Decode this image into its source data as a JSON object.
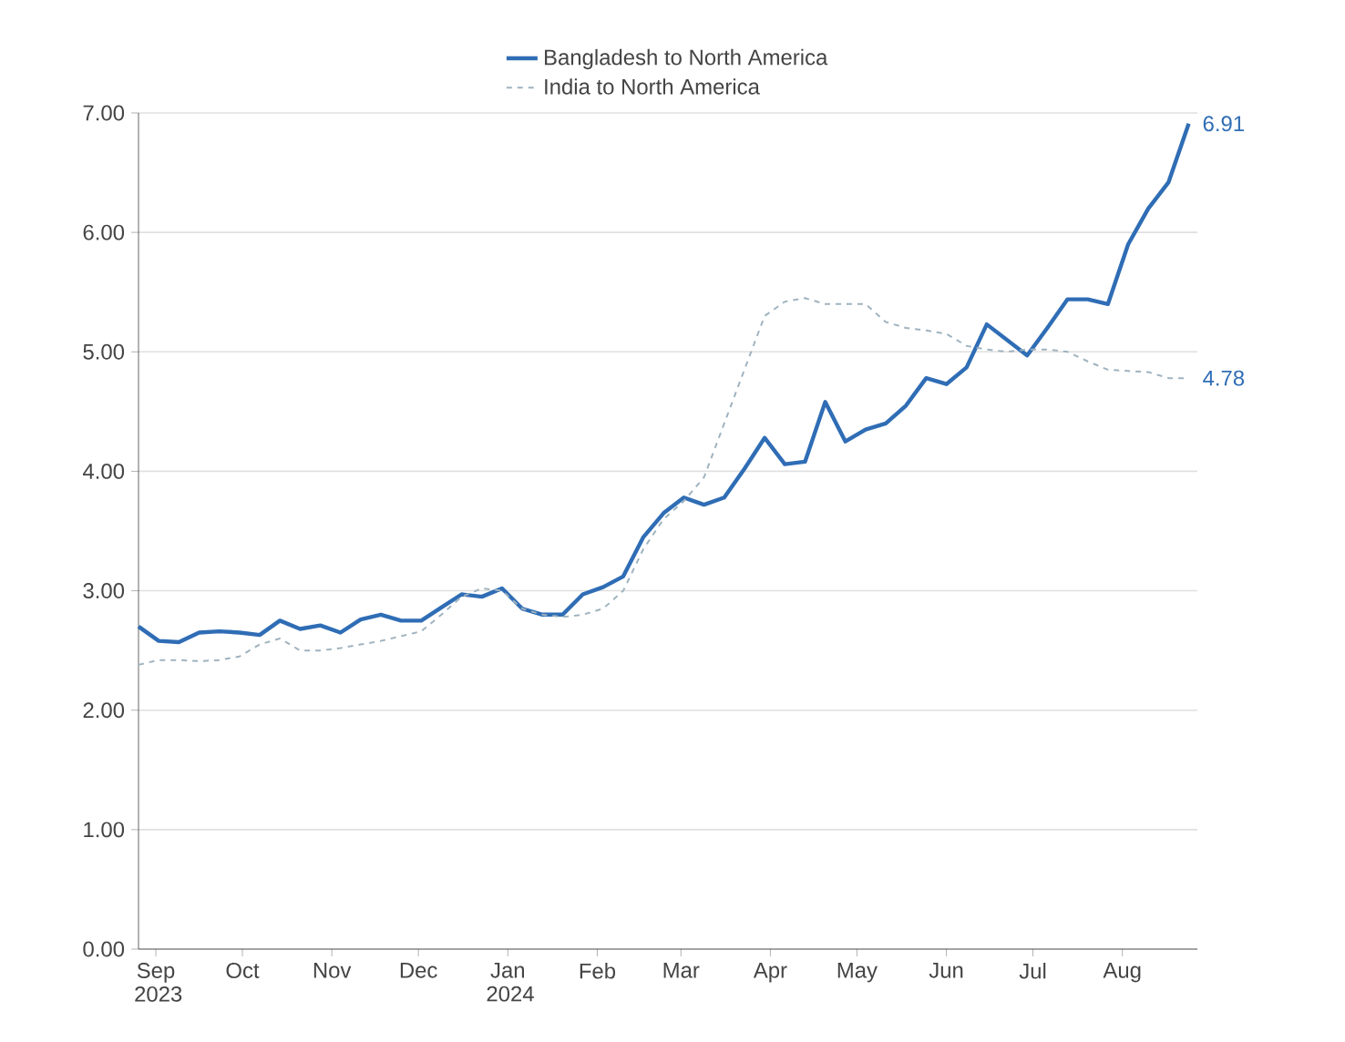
{
  "chart_data": {
    "type": "line",
    "x": [
      "2023-08-26",
      "2023-09-02",
      "2023-09-09",
      "2023-09-16",
      "2023-09-23",
      "2023-09-30",
      "2023-10-07",
      "2023-10-14",
      "2023-10-21",
      "2023-10-28",
      "2023-11-04",
      "2023-11-11",
      "2023-11-18",
      "2023-11-25",
      "2023-12-02",
      "2023-12-09",
      "2023-12-16",
      "2023-12-23",
      "2023-12-30",
      "2024-01-06",
      "2024-01-13",
      "2024-01-20",
      "2024-01-27",
      "2024-02-03",
      "2024-02-10",
      "2024-02-17",
      "2024-02-24",
      "2024-03-02",
      "2024-03-09",
      "2024-03-16",
      "2024-03-23",
      "2024-03-30",
      "2024-04-06",
      "2024-04-13",
      "2024-04-20",
      "2024-04-27",
      "2024-05-04",
      "2024-05-11",
      "2024-05-18",
      "2024-05-25",
      "2024-06-01",
      "2024-06-08",
      "2024-06-15",
      "2024-06-22",
      "2024-06-29",
      "2024-07-06",
      "2024-07-13",
      "2024-07-20",
      "2024-07-27",
      "2024-08-03",
      "2024-08-10",
      "2024-08-17",
      "2024-08-24"
    ],
    "series": [
      {
        "name": "Bangladesh to North America",
        "color": "#2f6db5",
        "line_style": "solid",
        "values": [
          2.7,
          2.58,
          2.57,
          2.65,
          2.66,
          2.65,
          2.63,
          2.75,
          2.68,
          2.71,
          2.65,
          2.76,
          2.8,
          2.75,
          2.75,
          2.86,
          2.97,
          2.95,
          3.02,
          2.85,
          2.8,
          2.8,
          2.97,
          3.03,
          3.12,
          3.45,
          3.65,
          3.78,
          3.72,
          3.78,
          4.02,
          4.28,
          4.06,
          4.08,
          4.58,
          4.25,
          4.35,
          4.4,
          4.55,
          4.78,
          4.73,
          4.87,
          5.23,
          5.1,
          4.97,
          5.2,
          5.44,
          5.44,
          5.4,
          5.9,
          6.2,
          6.42,
          6.91
        ]
      },
      {
        "name": "India to North America",
        "color": "#9fb3bf",
        "line_style": "dashed",
        "values": [
          2.38,
          2.42,
          2.42,
          2.41,
          2.42,
          2.45,
          2.55,
          2.6,
          2.5,
          2.5,
          2.52,
          2.55,
          2.58,
          2.62,
          2.66,
          2.8,
          2.95,
          3.02,
          3.0,
          2.85,
          2.8,
          2.78,
          2.8,
          2.85,
          3.0,
          3.35,
          3.6,
          3.75,
          3.95,
          4.4,
          4.85,
          5.3,
          5.42,
          5.45,
          5.4,
          5.4,
          5.4,
          5.25,
          5.2,
          5.18,
          5.15,
          5.05,
          5.02,
          5.0,
          5.02,
          5.02,
          5.0,
          4.92,
          4.85,
          4.84,
          4.83,
          4.78,
          4.78
        ]
      }
    ],
    "xlim": [
      "2023-08-26",
      "2024-08-27"
    ],
    "xticks": [
      {
        "value": "2023-09-01",
        "label": "Sep 2023"
      },
      {
        "value": "2023-10-01",
        "label": "Oct"
      },
      {
        "value": "2023-11-01",
        "label": "Nov"
      },
      {
        "value": "2023-12-01",
        "label": "Dec"
      },
      {
        "value": "2024-01-01",
        "label": "Jan 2024"
      },
      {
        "value": "2024-02-01",
        "label": "Feb"
      },
      {
        "value": "2024-03-01",
        "label": "Mar"
      },
      {
        "value": "2024-04-01",
        "label": "Apr"
      },
      {
        "value": "2024-05-01",
        "label": "May"
      },
      {
        "value": "2024-06-01",
        "label": "Jun"
      },
      {
        "value": "2024-07-01",
        "label": "Jul"
      },
      {
        "value": "2024-08-01",
        "label": "Aug"
      }
    ],
    "ylim": [
      0,
      7
    ],
    "yticks": [
      {
        "value": 0,
        "label": "0.00"
      },
      {
        "value": 1,
        "label": "1.00"
      },
      {
        "value": 2,
        "label": "2.00"
      },
      {
        "value": 3,
        "label": "3.00"
      },
      {
        "value": 4,
        "label": "4.00"
      },
      {
        "value": 5,
        "label": "5.00"
      },
      {
        "value": 6,
        "label": "6.00"
      },
      {
        "value": 7,
        "label": "7.00"
      }
    ],
    "grid": "y",
    "legend": "top",
    "annotations": [
      {
        "text": "6.91",
        "x": "2024-08-24",
        "y": 6.91
      },
      {
        "text": "4.78",
        "x": "2024-08-24",
        "y": 4.78
      }
    ]
  }
}
